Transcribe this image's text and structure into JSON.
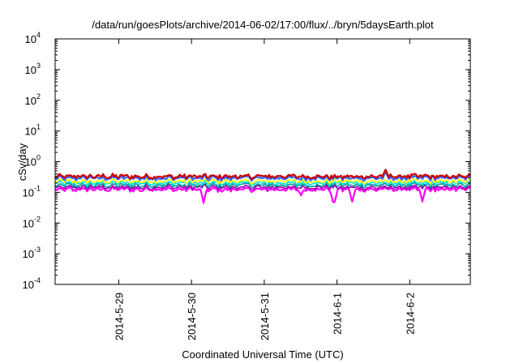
{
  "chart_data": {
    "type": "line",
    "title": "/data/run/goesPlots/archive/2014-06-02/17:00/flux/../bryn/5daysEarth.plot",
    "xlabel": "Coordinated Universal Time (UTC)",
    "ylabel": "cSv/day",
    "yscale": "log",
    "ylim": [
      0.0001,
      10000
    ],
    "y_ticks": [
      {
        "value": 0.0001,
        "base": "10",
        "exp": "-4"
      },
      {
        "value": 0.001,
        "base": "10",
        "exp": "-3"
      },
      {
        "value": 0.01,
        "base": "10",
        "exp": "-2"
      },
      {
        "value": 0.1,
        "base": "10",
        "exp": "-1"
      },
      {
        "value": 1,
        "base": "10",
        "exp": "0"
      },
      {
        "value": 10,
        "base": "10",
        "exp": "1"
      },
      {
        "value": 100,
        "base": "10",
        "exp": "2"
      },
      {
        "value": 1000,
        "base": "10",
        "exp": "3"
      },
      {
        "value": 10000,
        "base": "10",
        "exp": "4"
      }
    ],
    "xlim": [
      "2014-05-28 03:00",
      "2014-06-02 20:00"
    ],
    "x_ticks": [
      {
        "value": "2014-05-29 00:00",
        "label": "2014-5-29"
      },
      {
        "value": "2014-05-30 00:00",
        "label": "2014-5-30"
      },
      {
        "value": "2014-05-31 00:00",
        "label": "2014-5-31"
      },
      {
        "value": "2014-06-01 00:00",
        "label": "2014-6-1"
      },
      {
        "value": "2014-06-02 00:00",
        "label": "2014-6-2"
      }
    ],
    "grid": false,
    "series": [
      {
        "color": "#ff00ff",
        "level": 0.125,
        "dips": [
          {
            "t": "2014-05-30 04:00",
            "v": 0.045
          },
          {
            "t": "2014-05-31 23:00",
            "v": 0.048
          },
          {
            "t": "2014-06-01 05:00",
            "v": 0.05
          },
          {
            "t": "2014-06-02 04:00",
            "v": 0.05
          },
          {
            "t": "2014-05-31 12:00",
            "v": 0.08
          }
        ]
      },
      {
        "color": "#9900aa",
        "level": 0.145,
        "dips": []
      },
      {
        "color": "#009999",
        "level": 0.17,
        "dips": []
      },
      {
        "color": "#00e0e0",
        "level": 0.2,
        "dips": []
      },
      {
        "color": "#ffff00",
        "level": 0.23,
        "dips": []
      },
      {
        "color": "#3366ff",
        "level": 0.29,
        "dips": [
          {
            "t": "2014-06-01 16:00",
            "v": 0.45
          }
        ]
      },
      {
        "color": "#cc0000",
        "level": 0.33,
        "dips": [
          {
            "t": "2014-06-01 16:00",
            "v": 0.55
          }
        ]
      }
    ]
  }
}
